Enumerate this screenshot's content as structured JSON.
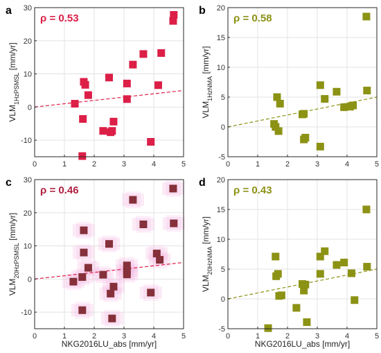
{
  "figure_xlabel": "NKG2016LU_abs [mm/yr]",
  "colors": {
    "crimson": "#dc1f47",
    "olive": "#8c9214",
    "maroon": "#85303a",
    "halo": "#f4b6e4",
    "rho_c": "#b02040"
  },
  "chart_data": [
    {
      "type": "scatter",
      "panel": "a",
      "annotation": "ρ = 0.53",
      "ylabel": "VLM",
      "ylabel_sub": "1HzPSMSL",
      "ylabel_unit": " [mm/yr]",
      "xlim": [
        0,
        5
      ],
      "ylim": [
        -15,
        30
      ],
      "xticks": [
        "0",
        "1",
        "2",
        "3",
        "4",
        "5"
      ],
      "yticks": [
        "-10",
        "0",
        "10",
        "20",
        "30"
      ],
      "ytick_values": [
        -10,
        0,
        10,
        20,
        30
      ],
      "x": [
        1.35,
        1.6,
        1.62,
        1.65,
        1.7,
        1.8,
        2.3,
        2.5,
        2.55,
        2.6,
        2.65,
        3.1,
        3.1,
        3.3,
        3.65,
        3.9,
        4.15,
        4.25,
        4.65,
        4.67
      ],
      "y": [
        1.0,
        -14.8,
        -3.6,
        7.6,
        6.7,
        3.6,
        -7.2,
        8.9,
        -7.6,
        -7.2,
        -4.4,
        7.1,
        2.4,
        12.8,
        16.0,
        -10.5,
        6.6,
        16.3,
        26.0,
        27.8
      ],
      "trend": [
        [
          0,
          0.0
        ],
        [
          5,
          5.0
        ]
      ],
      "marker_color": "#dc1f47",
      "trend_color": "#dc1f47",
      "annotation_color": "#dc1f47",
      "halo": false
    },
    {
      "type": "scatter",
      "panel": "b",
      "annotation": "ρ = 0.58",
      "ylabel": "VLM",
      "ylabel_sub": "1HzNMA",
      "ylabel_unit": " [mm/yr]",
      "xlim": [
        0,
        5
      ],
      "ylim": [
        -5,
        20
      ],
      "xticks": [
        "0",
        "1",
        "2",
        "3",
        "4",
        "5"
      ],
      "yticks": [
        "-5",
        "0",
        "5",
        "10",
        "15",
        "20"
      ],
      "ytick_values": [
        -5,
        0,
        5,
        10,
        15,
        20
      ],
      "x": [
        1.55,
        1.6,
        1.65,
        1.7,
        1.75,
        2.5,
        2.55,
        2.55,
        2.6,
        3.1,
        3.1,
        3.25,
        3.65,
        3.9,
        4.1,
        4.2,
        4.65,
        4.67
      ],
      "y": [
        0.5,
        0.0,
        5.0,
        -0.7,
        3.9,
        2.1,
        2.2,
        -2.1,
        -1.8,
        7.0,
        -3.3,
        4.7,
        5.9,
        3.3,
        3.4,
        3.6,
        18.5,
        6.1
      ],
      "trend": [
        [
          0,
          0.0
        ],
        [
          5,
          5.0
        ]
      ],
      "marker_color": "#8c9214",
      "trend_color": "#8c9214",
      "annotation_color": "#8c9214",
      "halo": false
    },
    {
      "type": "scatter",
      "panel": "c",
      "annotation": "ρ = 0.46",
      "ylabel": "VLM",
      "ylabel_sub": "20HzPSMSL",
      "ylabel_unit": " [mm/yr]",
      "xlim": [
        0,
        5
      ],
      "ylim": [
        -15,
        30
      ],
      "xticks": [
        "0",
        "1",
        "2",
        "3",
        "4",
        "5"
      ],
      "yticks": [
        "-10",
        "0",
        "10",
        "20",
        "30"
      ],
      "ytick_values": [
        -10,
        0,
        10,
        20,
        30
      ],
      "x": [
        1.3,
        1.6,
        1.6,
        1.65,
        1.65,
        1.8,
        2.3,
        2.5,
        2.55,
        2.6,
        2.65,
        3.1,
        3.1,
        3.1,
        3.3,
        3.65,
        3.9,
        4.1,
        4.2,
        4.65,
        4.67
      ],
      "y": [
        -0.8,
        -9.4,
        0.6,
        8.0,
        14.7,
        3.4,
        1.3,
        10.6,
        -4.4,
        -11.9,
        -2.3,
        4.1,
        2.5,
        1.4,
        23.9,
        16.5,
        -4.1,
        7.7,
        5.8,
        27.3,
        16.8
      ],
      "trend": [
        [
          0,
          0.0
        ],
        [
          5,
          5.0
        ]
      ],
      "marker_color": "#85303a",
      "trend_color": "#dc1f47",
      "annotation_color": "#b02040",
      "halo": true
    },
    {
      "type": "scatter",
      "panel": "d",
      "annotation": "ρ = 0.43",
      "ylabel": "VLM",
      "ylabel_sub": "20HzNMA",
      "ylabel_unit": " [mm/yr]",
      "xlim": [
        0,
        5
      ],
      "ylim": [
        -5,
        20
      ],
      "xticks": [
        "0",
        "1",
        "2",
        "3",
        "4",
        "5"
      ],
      "yticks": [
        "-5",
        "0",
        "5",
        "10",
        "15",
        "20"
      ],
      "ytick_values": [
        -5,
        0,
        5,
        10,
        15,
        20
      ],
      "x": [
        1.35,
        1.6,
        1.62,
        1.68,
        1.72,
        1.8,
        2.3,
        2.5,
        2.55,
        2.6,
        2.65,
        3.1,
        3.1,
        3.25,
        3.65,
        3.9,
        4.15,
        4.25,
        4.65,
        4.67
      ],
      "y": [
        -4.9,
        7.1,
        3.8,
        4.2,
        0.5,
        0.6,
        -1.5,
        2.5,
        1.4,
        2.4,
        -3.9,
        7.1,
        4.2,
        8.0,
        5.7,
        6.1,
        4.3,
        -0.2,
        15.0,
        5.4
      ],
      "trend": [
        [
          0,
          0.0
        ],
        [
          5,
          5.0
        ]
      ],
      "marker_color": "#8c9214",
      "trend_color": "#8c9214",
      "annotation_color": "#8c9214",
      "halo": false
    }
  ]
}
